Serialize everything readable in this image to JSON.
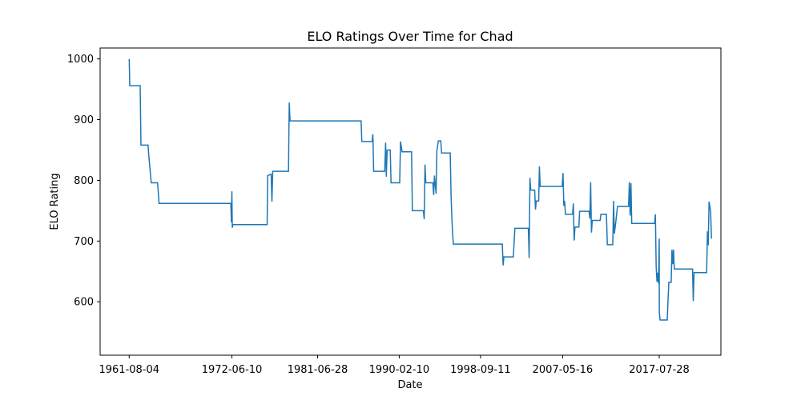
{
  "chart_data": {
    "type": "line",
    "title": "ELO Ratings Over Time for Chad",
    "xlabel": "Date",
    "ylabel": "ELO Rating",
    "x_tick_labels": [
      "1961-08-04",
      "1972-06-10",
      "1981-06-28",
      "1990-02-10",
      "1998-09-11",
      "2007-05-16",
      "2017-07-28"
    ],
    "y_tick_labels": [
      "600",
      "700",
      "800",
      "900",
      "1000"
    ],
    "y_ticks": [
      600,
      700,
      800,
      900,
      1000
    ],
    "xlim": [
      "1958-07-10",
      "2024-02-01"
    ],
    "ylim": [
      512,
      1018
    ],
    "grid": false,
    "line_color": "#1f77b4",
    "series": [
      {
        "points": [
          [
            "1961-08-04",
            1000
          ],
          [
            "1961-08-25",
            956
          ],
          [
            "1962-10-01",
            956
          ],
          [
            "1962-11-01",
            858
          ],
          [
            "1963-08-01",
            858
          ],
          [
            "1963-09-01",
            840
          ],
          [
            "1963-12-01",
            796
          ],
          [
            "1964-08-01",
            796
          ],
          [
            "1964-09-01",
            779
          ],
          [
            "1964-10-01",
            762
          ],
          [
            "1972-05-01",
            762
          ],
          [
            "1972-05-20",
            731
          ],
          [
            "1972-06-01",
            760
          ],
          [
            "1972-06-10",
            782
          ],
          [
            "1972-06-25",
            722
          ],
          [
            "1972-07-15",
            727
          ],
          [
            "1976-03-01",
            727
          ],
          [
            "1976-03-20",
            808
          ],
          [
            "1976-08-01",
            810
          ],
          [
            "1976-09-01",
            765
          ],
          [
            "1976-10-01",
            815
          ],
          [
            "1978-06-01",
            815
          ],
          [
            "1978-06-15",
            870
          ],
          [
            "1978-07-01",
            928
          ],
          [
            "1978-08-01",
            898
          ],
          [
            "1981-06-28",
            898
          ],
          [
            "1986-02-01",
            898
          ],
          [
            "1986-03-01",
            864
          ],
          [
            "1987-04-01",
            864
          ],
          [
            "1987-05-01",
            876
          ],
          [
            "1987-06-01",
            815
          ],
          [
            "1988-08-01",
            815
          ],
          [
            "1988-09-01",
            862
          ],
          [
            "1988-10-01",
            806
          ],
          [
            "1988-11-01",
            850
          ],
          [
            "1989-03-01",
            850
          ],
          [
            "1989-04-01",
            796
          ],
          [
            "1990-03-01",
            796
          ],
          [
            "1990-04-01",
            864
          ],
          [
            "1990-06-01",
            847
          ],
          [
            "1991-06-01",
            847
          ],
          [
            "1991-07-01",
            750
          ],
          [
            "1992-09-01",
            750
          ],
          [
            "1992-10-01",
            736
          ],
          [
            "1992-11-01",
            826
          ],
          [
            "1992-12-01",
            796
          ],
          [
            "1993-09-01",
            796
          ],
          [
            "1993-10-01",
            776
          ],
          [
            "1993-11-01",
            808
          ],
          [
            "1994-01-01",
            778
          ],
          [
            "1994-02-01",
            849
          ],
          [
            "1994-04-01",
            865
          ],
          [
            "1994-07-01",
            865
          ],
          [
            "1994-08-01",
            845
          ],
          [
            "1995-07-01",
            845
          ],
          [
            "1995-08-01",
            776
          ],
          [
            "1995-09-01",
            740
          ],
          [
            "1995-10-01",
            713
          ],
          [
            "1995-11-01",
            695
          ],
          [
            "2001-01-01",
            695
          ],
          [
            "2001-02-01",
            660
          ],
          [
            "2001-03-01",
            674
          ],
          [
            "2002-03-01",
            674
          ],
          [
            "2002-04-01",
            700
          ],
          [
            "2002-05-01",
            721
          ],
          [
            "2002-09-01",
            721
          ],
          [
            "2003-10-01",
            721
          ],
          [
            "2003-11-01",
            672
          ],
          [
            "2003-12-01",
            804
          ],
          [
            "2004-01-01",
            784
          ],
          [
            "2004-06-01",
            784
          ],
          [
            "2004-07-01",
            752
          ],
          [
            "2004-08-01",
            766
          ],
          [
            "2004-11-01",
            766
          ],
          [
            "2004-12-01",
            823
          ],
          [
            "2005-01-01",
            790
          ],
          [
            "2007-05-01",
            790
          ],
          [
            "2007-06-01",
            812
          ],
          [
            "2007-07-01",
            758
          ],
          [
            "2007-08-01",
            766
          ],
          [
            "2007-09-01",
            744
          ],
          [
            "2008-06-01",
            744
          ],
          [
            "2008-07-01",
            762
          ],
          [
            "2008-08-01",
            701
          ],
          [
            "2008-09-01",
            723
          ],
          [
            "2009-02-01",
            723
          ],
          [
            "2009-03-01",
            749
          ],
          [
            "2010-03-01",
            749
          ],
          [
            "2010-04-01",
            737
          ],
          [
            "2010-05-01",
            797
          ],
          [
            "2010-06-01",
            714
          ],
          [
            "2010-07-01",
            734
          ],
          [
            "2011-05-01",
            734
          ],
          [
            "2011-06-01",
            744
          ],
          [
            "2012-01-01",
            744
          ],
          [
            "2012-02-01",
            694
          ],
          [
            "2012-09-01",
            694
          ],
          [
            "2012-10-01",
            766
          ],
          [
            "2012-11-01",
            712
          ],
          [
            "2013-01-01",
            734
          ],
          [
            "2013-03-01",
            757
          ],
          [
            "2014-05-01",
            757
          ],
          [
            "2014-06-01",
            797
          ],
          [
            "2014-07-01",
            742
          ],
          [
            "2014-08-01",
            795
          ],
          [
            "2014-09-01",
            729
          ],
          [
            "2017-02-01",
            729
          ],
          [
            "2017-03-01",
            744
          ],
          [
            "2017-04-01",
            657
          ],
          [
            "2017-05-01",
            633
          ],
          [
            "2017-06-01",
            648
          ],
          [
            "2017-07-01",
            630
          ],
          [
            "2017-08-01",
            583
          ],
          [
            "2017-09-01",
            570
          ],
          [
            "2018-06-01",
            570
          ],
          [
            "2018-07-01",
            600
          ],
          [
            "2018-08-01",
            632
          ],
          [
            "2018-11-01",
            632
          ],
          [
            "2018-12-01",
            686
          ],
          [
            "2019-01-01",
            662
          ],
          [
            "2019-02-01",
            686
          ],
          [
            "2019-03-01",
            654
          ],
          [
            "2021-02-01",
            654
          ],
          [
            "2021-03-01",
            601
          ],
          [
            "2021-04-01",
            648
          ],
          [
            "2022-08-01",
            648
          ],
          [
            "2022-09-01",
            716
          ],
          [
            "2022-10-01",
            693
          ],
          [
            "2022-11-01",
            765
          ],
          [
            "2023-01-01",
            749
          ],
          [
            "2023-02-01",
            704
          ],
          [
            "2017-07-28",
            704
          ]
        ]
      }
    ]
  }
}
